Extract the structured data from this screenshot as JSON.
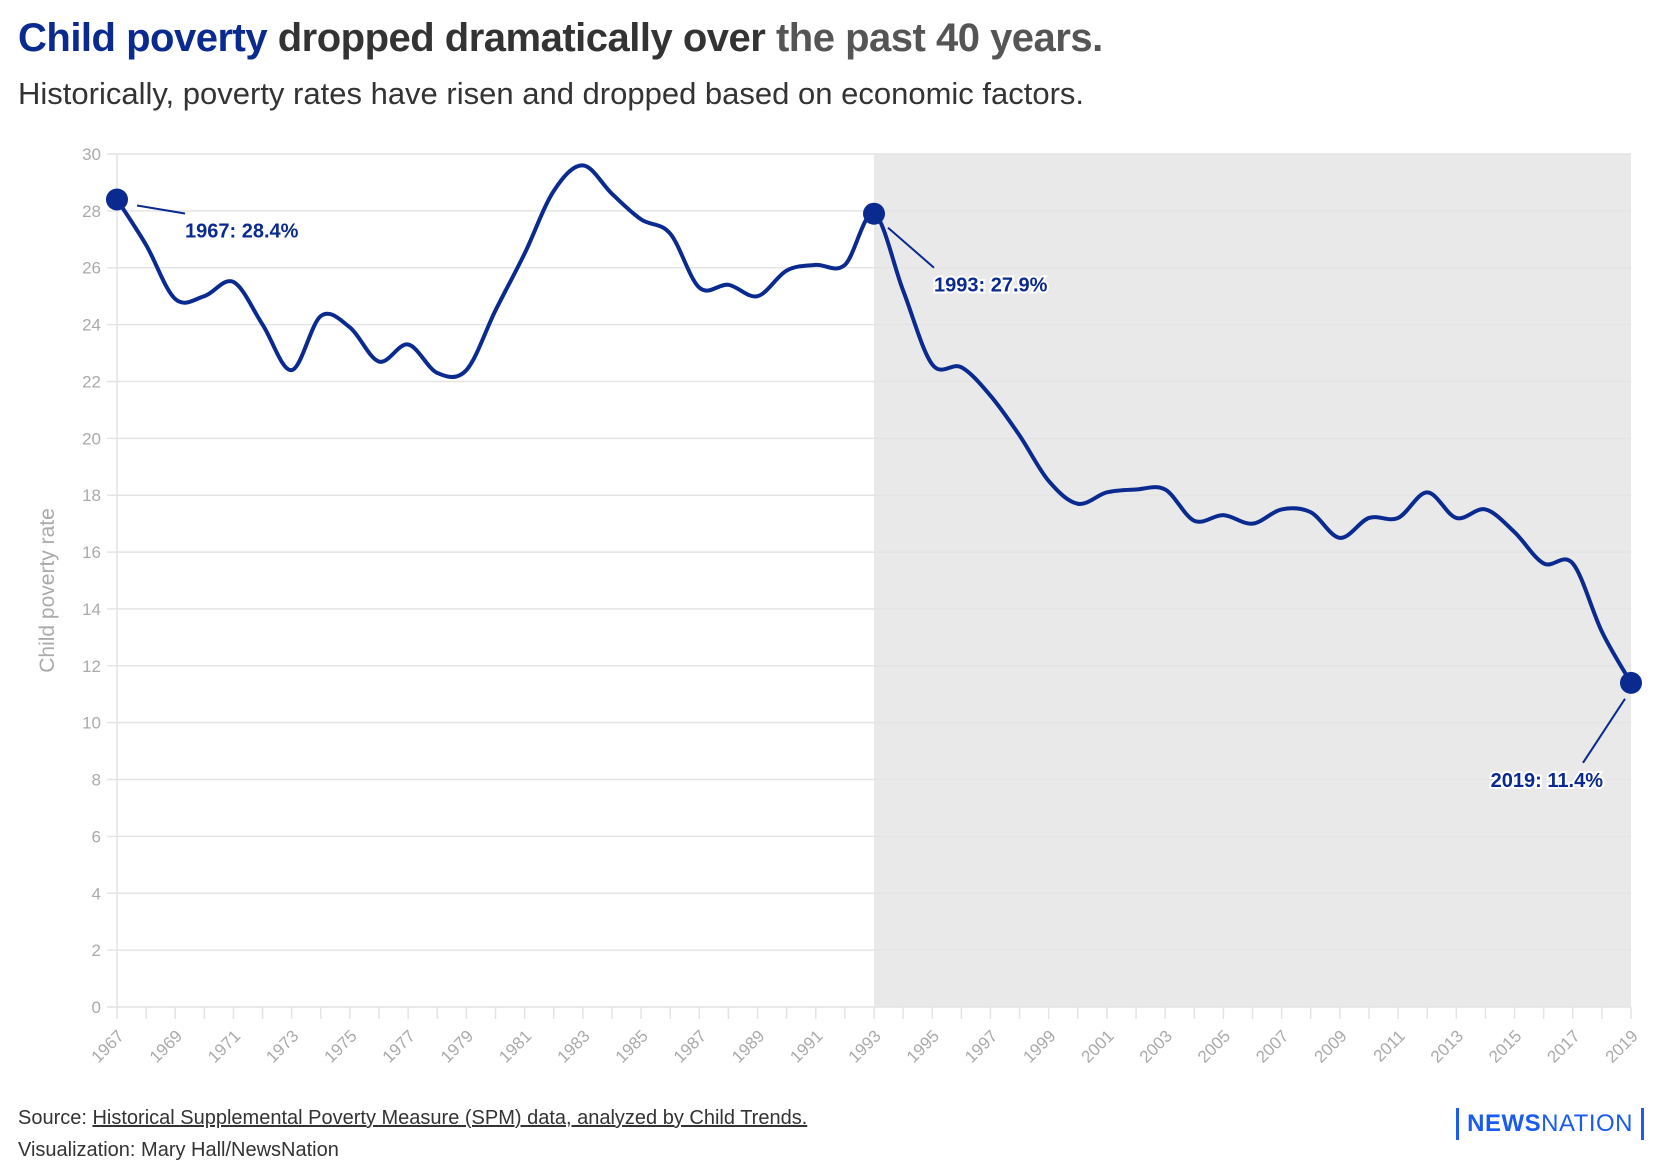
{
  "header": {
    "title_highlight": "Child poverty",
    "title_middle": " dropped dramatically over ",
    "title_end": "the past 40 years.",
    "subtitle": "Historically, poverty rates have risen and dropped based on economic factors."
  },
  "footer": {
    "source_prefix": "Source: ",
    "source_link": "Historical Supplemental Poverty Measure (SPM) data, analyzed by Child Trends.",
    "credit": "Visualization: Mary Hall/NewsNation"
  },
  "logo": {
    "part1": "NEWS",
    "part2": "NATION"
  },
  "colors": {
    "line": "#0a2a8f",
    "shade": "#e9e9e9",
    "grid": "#e4e4e4",
    "tick": "#aaaaaa",
    "logo": "#1a5cf0"
  },
  "chart_data": {
    "type": "line",
    "title": "Child poverty dropped dramatically over the past 40 years.",
    "xlabel": "",
    "ylabel": "Child poverty rate",
    "ylim": [
      0,
      30
    ],
    "xlim": [
      1967,
      2019
    ],
    "yticks": [
      0,
      2,
      4,
      6,
      8,
      10,
      12,
      14,
      16,
      18,
      20,
      22,
      24,
      26,
      28,
      30
    ],
    "xticks": [
      1967,
      1969,
      1971,
      1973,
      1975,
      1977,
      1979,
      1981,
      1983,
      1985,
      1987,
      1989,
      1991,
      1993,
      1995,
      1997,
      1999,
      2001,
      2003,
      2005,
      2007,
      2009,
      2011,
      2013,
      2015,
      2017,
      2019
    ],
    "grid": true,
    "shaded_range": [
      1993,
      2019
    ],
    "x": [
      1967,
      1968,
      1969,
      1970,
      1971,
      1972,
      1973,
      1974,
      1975,
      1976,
      1977,
      1978,
      1979,
      1980,
      1981,
      1982,
      1983,
      1984,
      1985,
      1986,
      1987,
      1988,
      1989,
      1990,
      1991,
      1992,
      1993,
      1994,
      1995,
      1996,
      1997,
      1998,
      1999,
      2000,
      2001,
      2002,
      2003,
      2004,
      2005,
      2006,
      2007,
      2008,
      2009,
      2010,
      2011,
      2012,
      2013,
      2014,
      2015,
      2016,
      2017,
      2018,
      2019
    ],
    "y": [
      28.4,
      26.8,
      24.9,
      25.0,
      25.5,
      24.0,
      22.4,
      24.3,
      23.9,
      22.7,
      23.3,
      22.3,
      22.4,
      24.5,
      26.5,
      28.7,
      29.6,
      28.6,
      27.7,
      27.2,
      25.3,
      25.4,
      25.0,
      25.9,
      26.1,
      26.1,
      27.9,
      25.2,
      22.6,
      22.5,
      21.5,
      20.1,
      18.5,
      17.7,
      18.1,
      18.2,
      18.2,
      17.1,
      17.3,
      17.0,
      17.5,
      17.4,
      16.5,
      17.2,
      17.2,
      18.1,
      17.2,
      17.5,
      16.7,
      15.6,
      15.6,
      13.2,
      11.4
    ],
    "annotations": [
      {
        "x": 1967,
        "y": 28.4,
        "label": "1967: 28.4%"
      },
      {
        "x": 1993,
        "y": 27.9,
        "label": "1993: 27.9%"
      },
      {
        "x": 2019,
        "y": 11.4,
        "label": "2019: 11.4%"
      }
    ]
  }
}
